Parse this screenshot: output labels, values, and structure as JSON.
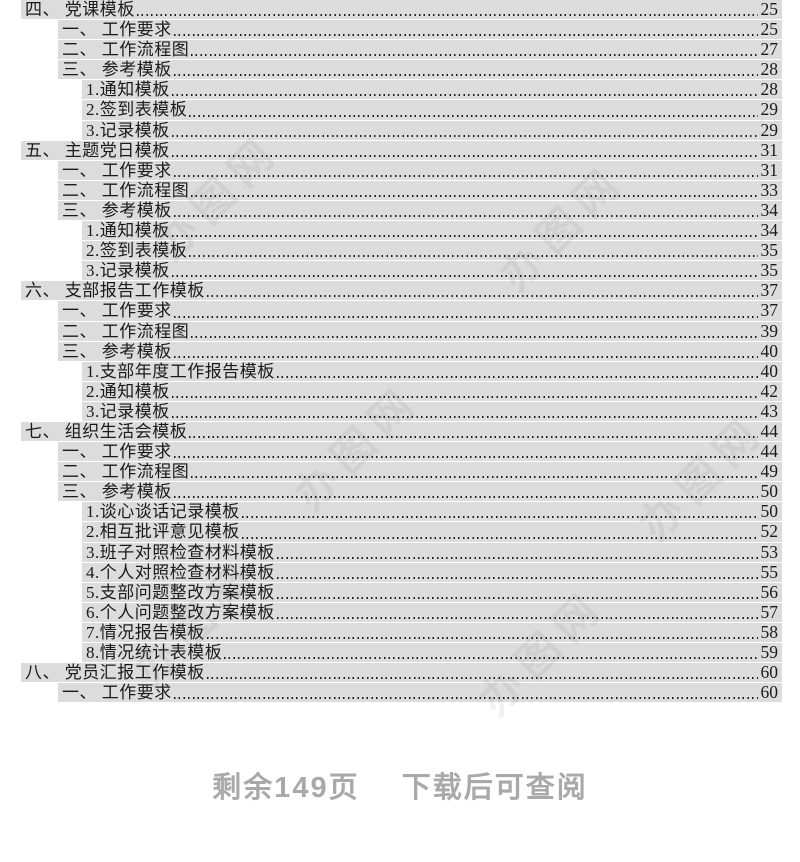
{
  "toc": {
    "bg_color": "#dcdcdc",
    "text_color": "#1a1a1a",
    "entries": [
      {
        "level": 1,
        "label": "四、 党课模板",
        "page": "25"
      },
      {
        "level": 2,
        "label": "一、 工作要求",
        "page": "25"
      },
      {
        "level": 2,
        "label": "二、 工作流程图",
        "page": "27"
      },
      {
        "level": 2,
        "label": "三、 参考模板",
        "page": "28"
      },
      {
        "level": 3,
        "label": "1.通知模板",
        "page": "28"
      },
      {
        "level": 3,
        "label": "2.签到表模板",
        "page": "29"
      },
      {
        "level": 3,
        "label": "3.记录模板",
        "page": "29"
      },
      {
        "level": 1,
        "label": "五、 主题党日模板",
        "page": "31"
      },
      {
        "level": 2,
        "label": "一、 工作要求",
        "page": "31"
      },
      {
        "level": 2,
        "label": "二、 工作流程图",
        "page": "33"
      },
      {
        "level": 2,
        "label": "三、 参考模板",
        "page": "34"
      },
      {
        "level": 3,
        "label": "1.通知模板",
        "page": "34"
      },
      {
        "level": 3,
        "label": "2.签到表模板",
        "page": "35"
      },
      {
        "level": 3,
        "label": "3.记录模板",
        "page": "35"
      },
      {
        "level": 1,
        "label": "六、 支部报告工作模板",
        "page": "37"
      },
      {
        "level": 2,
        "label": "一、 工作要求",
        "page": "37"
      },
      {
        "level": 2,
        "label": "二、 工作流程图",
        "page": "39"
      },
      {
        "level": 2,
        "label": "三、 参考模板",
        "page": "40"
      },
      {
        "level": 3,
        "label": "1.支部年度工作报告模板",
        "page": "40"
      },
      {
        "level": 3,
        "label": "2.通知模板",
        "page": "42"
      },
      {
        "level": 3,
        "label": "3.记录模板",
        "page": "43"
      },
      {
        "level": 1,
        "label": "七、 组织生活会模板",
        "page": "44"
      },
      {
        "level": 2,
        "label": "一、 工作要求",
        "page": "44"
      },
      {
        "level": 2,
        "label": "二、 工作流程图",
        "page": "49"
      },
      {
        "level": 2,
        "label": "三、 参考模板",
        "page": "50"
      },
      {
        "level": 3,
        "label": "1.谈心谈话记录模板",
        "page": "50"
      },
      {
        "level": 3,
        "label": "2.相互批评意见模板",
        "page": "52"
      },
      {
        "level": 3,
        "label": "3.班子对照检查材料模板",
        "page": "53"
      },
      {
        "level": 3,
        "label": "4.个人对照检查材料模板",
        "page": "55"
      },
      {
        "level": 3,
        "label": "5.支部问题整改方案模板",
        "page": "56"
      },
      {
        "level": 3,
        "label": "6.个人问题整改方案模板",
        "page": "57"
      },
      {
        "level": 3,
        "label": "7.情况报告模板",
        "page": "58"
      },
      {
        "level": 3,
        "label": "8.情况统计表模板",
        "page": "59"
      },
      {
        "level": 1,
        "label": "八、 党员汇报工作模板",
        "page": "60"
      },
      {
        "level": 2,
        "label": "一、 工作要求",
        "page": "60"
      }
    ]
  },
  "watermark": {
    "text": "办图网"
  },
  "footer": {
    "remaining": "剩余149页",
    "note": "下载后可查阅",
    "color": "#a9a9a9"
  }
}
